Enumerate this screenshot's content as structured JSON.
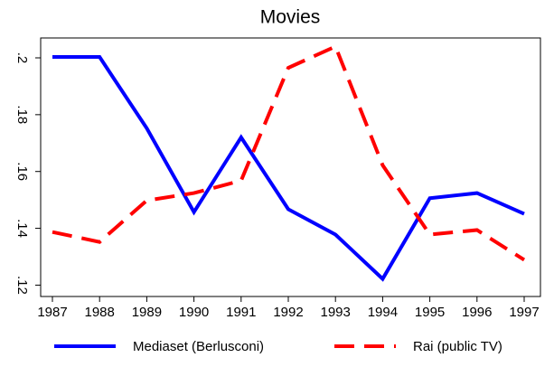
{
  "chart_data": {
    "type": "line",
    "title": "Movies",
    "x": [
      1987,
      1988,
      1989,
      1990,
      1991,
      1992,
      1993,
      1994,
      1995,
      1996,
      1997
    ],
    "xlim": [
      1987,
      1997
    ],
    "xticks": [
      1987,
      1988,
      1989,
      1990,
      1991,
      1992,
      1993,
      1994,
      1995,
      1996,
      1997
    ],
    "ylim": [
      0.116,
      0.207
    ],
    "yticks": [
      {
        "value": 0.12,
        "label": ".12"
      },
      {
        "value": 0.14,
        "label": ".14"
      },
      {
        "value": 0.16,
        "label": ".16"
      },
      {
        "value": 0.18,
        "label": ".18"
      },
      {
        "value": 0.2,
        "label": ".2"
      }
    ],
    "series": [
      {
        "name": "Mediaset (Berlusconi)",
        "color": "#0000ff",
        "dash": "solid",
        "values": [
          0.2003,
          0.2003,
          0.1752,
          0.1457,
          0.172,
          0.1467,
          0.1378,
          0.1222,
          0.1506,
          0.1524,
          0.1451
        ]
      },
      {
        "name": "Rai (public TV)",
        "color": "#ff0000",
        "dash": "dashed",
        "values": [
          0.1387,
          0.1352,
          0.1498,
          0.1524,
          0.1568,
          0.1965,
          0.204,
          0.1622,
          0.1378,
          0.1394,
          0.1289
        ]
      }
    ]
  }
}
